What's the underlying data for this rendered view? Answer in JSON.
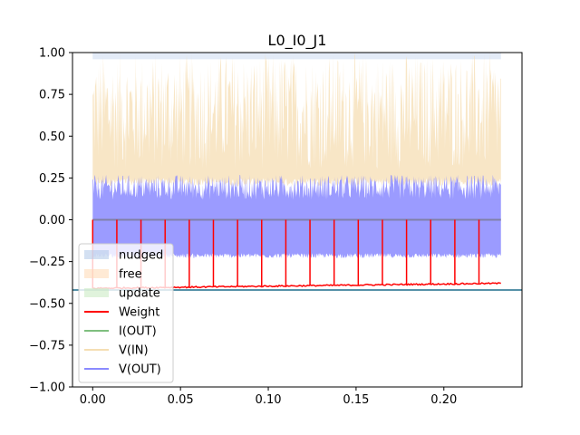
{
  "chart_data": {
    "type": "line",
    "title": "L0_I0_J1",
    "xlabel": "",
    "ylabel": "",
    "xlim": [
      -0.0115,
      0.2445
    ],
    "ylim": [
      -1.0,
      1.0
    ],
    "x_ticks": [
      "0.00",
      "0.05",
      "0.10",
      "0.15",
      "0.20"
    ],
    "x_tick_values": [
      0.0,
      0.05,
      0.1,
      0.15,
      0.2
    ],
    "y_ticks": [
      "1.00",
      "0.75",
      "0.50",
      "0.25",
      "0.00",
      "−0.25",
      "−0.50",
      "−0.75",
      "−1.00"
    ],
    "y_tick_values": [
      1.0,
      0.75,
      0.5,
      0.25,
      0.0,
      -0.25,
      -0.5,
      -0.75,
      -1.0
    ],
    "grid": false,
    "legend_position": "lower-left",
    "x_end": 0.2325,
    "period": 0.01375,
    "spike_times": [
      0.0,
      0.01375,
      0.0275,
      0.04125,
      0.055,
      0.06875,
      0.0825,
      0.09625,
      0.11,
      0.12375,
      0.1375,
      0.15125,
      0.165,
      0.17875,
      0.1925,
      0.20625,
      0.22
    ],
    "horizontal_line": {
      "y": -0.42,
      "color": "#1f6f8b"
    },
    "series": [
      {
        "name": "nudged",
        "kind": "span",
        "color": "#aec7e8",
        "ymin": 0.96,
        "ymax": 1.0
      },
      {
        "name": "free",
        "kind": "span",
        "color": "#ffd9b3"
      },
      {
        "name": "update",
        "kind": "span",
        "color": "#c7e9c0"
      },
      {
        "name": "Weight",
        "kind": "line",
        "color": "#ff0000",
        "baseline_start": -0.41,
        "baseline_end": -0.38,
        "spike_peak": 0.0
      },
      {
        "name": "I(OUT)",
        "kind": "line",
        "color": "#7fbf7f",
        "constant": 0.0
      },
      {
        "name": "V(IN)",
        "kind": "line",
        "color": "#f5deb3",
        "low": 0.2,
        "high": 1.0
      },
      {
        "name": "V(OUT)",
        "kind": "line",
        "color": "#8a8aff",
        "low": -0.23,
        "high": 0.27
      }
    ]
  }
}
